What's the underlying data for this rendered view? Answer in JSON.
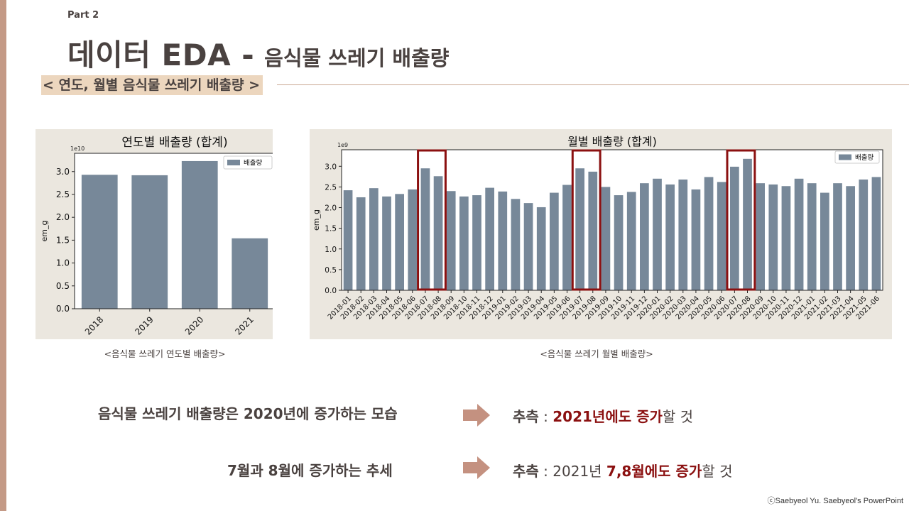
{
  "header": {
    "part": "Part 2",
    "title_main": "데이터 EDA -",
    "title_sub": "음식물 쓰레기 배출량",
    "section": "< 연도, 월별 음식물 쓰레기 배출량 >"
  },
  "colors": {
    "bar": "#778899",
    "highlight_box": "#8b1010",
    "panel_bg": "#ebe7df",
    "accent": "#c49a86",
    "arrow": "#c49180"
  },
  "chart_data": [
    {
      "type": "bar",
      "title": "연도별 배출량 (합계)",
      "ylabel": "em_g",
      "xlabel": "",
      "y_scale_label": "1e10",
      "categories": [
        "2018",
        "2019",
        "2020",
        "2021"
      ],
      "series": [
        {
          "name": "배출량",
          "values": [
            2.93,
            2.92,
            3.23,
            1.54
          ]
        }
      ],
      "ylim": [
        0,
        3.4
      ],
      "yticks": [
        "0.0",
        "0.5",
        "1.0",
        "1.5",
        "2.0",
        "2.5",
        "3.0"
      ],
      "legend": "top-right",
      "grid": false
    },
    {
      "type": "bar",
      "title": "월별 배출량 (합계)",
      "ylabel": "em_g",
      "xlabel": "",
      "y_scale_label": "1e9",
      "categories": [
        "2018-01",
        "2018-02",
        "2018-03",
        "2018-04",
        "2018-05",
        "2018-06",
        "2018-07",
        "2018-08",
        "2018-09",
        "2018-10",
        "2018-11",
        "2018-12",
        "2019-01",
        "2019-02",
        "2019-03",
        "2019-04",
        "2019-05",
        "2019-06",
        "2019-07",
        "2019-08",
        "2019-09",
        "2019-10",
        "2019-11",
        "2019-12",
        "2020-01",
        "2020-02",
        "2020-03",
        "2020-04",
        "2020-05",
        "2020-06",
        "2020-07",
        "2020-08",
        "2020-09",
        "2020-10",
        "2020-11",
        "2020-12",
        "2021-01",
        "2021-02",
        "2021-03",
        "2021-04",
        "2021-05",
        "2021-06"
      ],
      "series": [
        {
          "name": "배출량",
          "values": [
            2.42,
            2.25,
            2.47,
            2.27,
            2.33,
            2.44,
            2.95,
            2.76,
            2.4,
            2.27,
            2.3,
            2.48,
            2.39,
            2.21,
            2.11,
            2.01,
            2.36,
            2.55,
            2.95,
            2.87,
            2.5,
            2.3,
            2.38,
            2.59,
            2.7,
            2.56,
            2.68,
            2.44,
            2.74,
            2.62,
            2.99,
            3.18,
            2.59,
            2.56,
            2.52,
            2.7,
            2.59,
            2.36,
            2.59,
            2.52,
            2.68,
            2.74
          ]
        }
      ],
      "ylim": [
        0,
        3.4
      ],
      "yticks": [
        "0.0",
        "0.5",
        "1.0",
        "1.5",
        "2.0",
        "2.5",
        "3.0"
      ],
      "legend": "top-right",
      "grid": false,
      "highlighted_months": [
        "2018-07",
        "2018-08",
        "2019-07",
        "2019-08",
        "2020-07",
        "2020-08"
      ]
    }
  ],
  "captions": {
    "yearly": "<음식물 쓰레기 연도별 배출량>",
    "monthly": "<음식물 쓰레기 월별 배출량>"
  },
  "findings": [
    {
      "statement": "음식물 쓰레기 배출량은 2020년에 증가하는 모습",
      "infer_label": "추측",
      "infer_sep": " : ",
      "infer_plain1": "",
      "infer_red": "2021년에도 증가",
      "infer_plain2": "할 것"
    },
    {
      "statement": "7월과 8월에 증가하는 추세",
      "infer_label": "추측",
      "infer_sep": " : ",
      "infer_plain1": "2021년 ",
      "infer_red": "7,8월에도 증가",
      "infer_plain2": "할 것"
    }
  ],
  "credit": "ⓒSaebyeol Yu. Saebyeol's PowerPoint"
}
